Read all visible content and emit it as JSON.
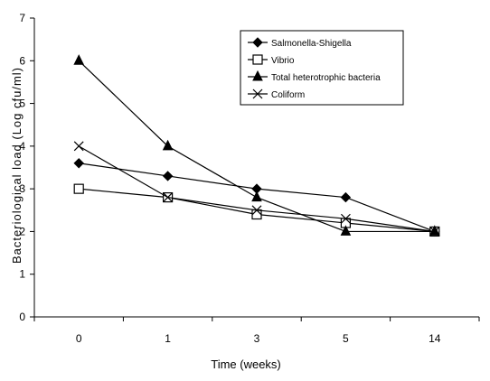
{
  "chart_data": {
    "type": "line",
    "title": "",
    "xlabel": "Time (weeks)",
    "ylabel": "Bacteriological load (Log cfu/ml)",
    "categories": [
      "0",
      "1",
      "3",
      "5",
      "14"
    ],
    "ylim": [
      0,
      7
    ],
    "yticks": [
      "0",
      "1",
      "2",
      "3",
      "4",
      "5",
      "6",
      "7"
    ],
    "grid": false,
    "legend_position": "top-right",
    "series": [
      {
        "name": "Salmonella-Shigella",
        "marker": "diamond-filled",
        "color": "#000000",
        "values": [
          3.6,
          3.3,
          3.0,
          2.8,
          2.0
        ]
      },
      {
        "name": "Vibrio",
        "marker": "square-open",
        "color": "#000000",
        "values": [
          3.0,
          2.8,
          2.4,
          2.2,
          2.0
        ]
      },
      {
        "name": "Total heterotrophic bacteria",
        "marker": "triangle-filled",
        "color": "#000000",
        "values": [
          6.0,
          4.0,
          2.8,
          2.0,
          2.0
        ]
      },
      {
        "name": "Coliform",
        "marker": "x",
        "color": "#000000",
        "values": [
          4.0,
          2.8,
          2.5,
          2.3,
          2.0
        ]
      }
    ]
  }
}
